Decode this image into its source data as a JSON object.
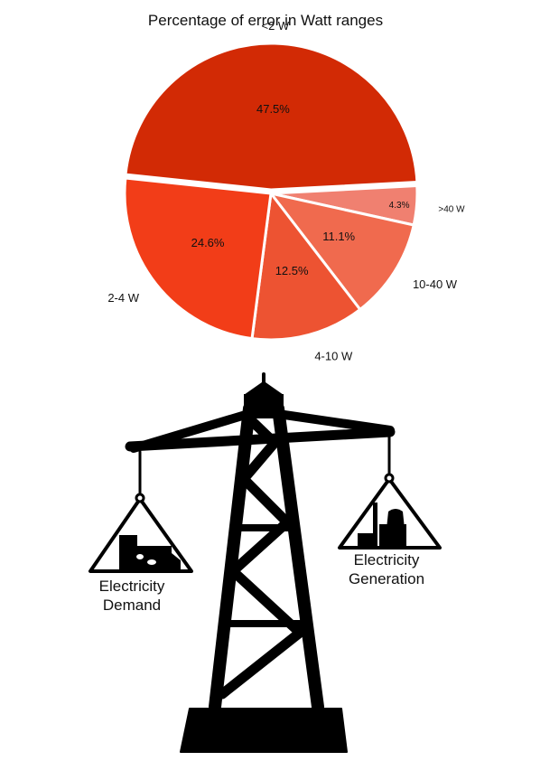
{
  "chart_data": {
    "type": "pie",
    "title": "Percentage of error in Watt ranges",
    "categories": [
      "<2 W",
      ">40 W",
      "10-40 W",
      "4-10 W",
      "2-4 W"
    ],
    "values": [
      47.5,
      4.3,
      11.1,
      12.5,
      24.6
    ],
    "value_labels": [
      "47.5%",
      "4.3%",
      "11.1%",
      "12.5%",
      "24.6%"
    ],
    "colors": [
      "#d22a05",
      "#f08070",
      "#f06a4e",
      "#ed5332",
      "#f23d18"
    ],
    "legend": "none"
  },
  "illustration": {
    "icon": "transmission-tower-balance-icon",
    "left_caption": [
      "Electricity",
      "Demand"
    ],
    "right_caption": [
      "Electricity",
      "Generation"
    ]
  }
}
